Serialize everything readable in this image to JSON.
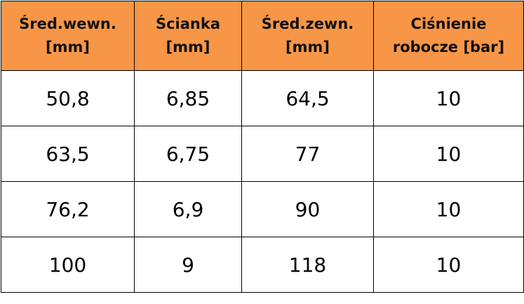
{
  "table": {
    "header": [
      {
        "line1": "Śred.wewn.",
        "line2": "[mm]"
      },
      {
        "line1": "Ścianka",
        "line2": "[mm]"
      },
      {
        "line1": "Śred.zewn.",
        "line2": "[mm]"
      },
      {
        "line1": "Ciśnienie",
        "line2": "robocze [bar]"
      }
    ],
    "rows": [
      [
        "50,8",
        "6,85",
        "64,5",
        "10"
      ],
      [
        "63,5",
        "6,75",
        "77",
        "10"
      ],
      [
        "76,2",
        "6,9",
        "90",
        "10"
      ],
      [
        "100",
        "9",
        "118",
        "10"
      ]
    ]
  },
  "colors": {
    "header_background": "#F79646",
    "border": "#000000",
    "body_background": "#FFFFFF"
  }
}
